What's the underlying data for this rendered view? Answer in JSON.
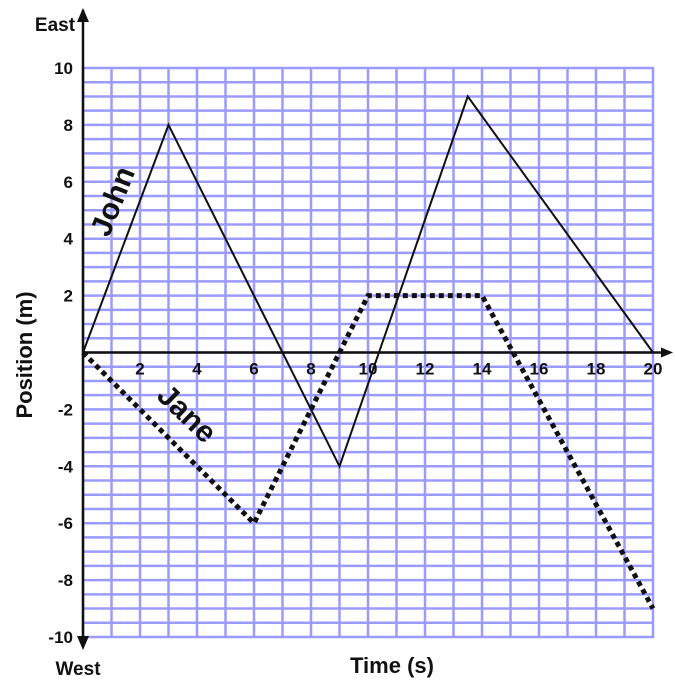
{
  "chart_data": {
    "type": "line",
    "xlabel": "Time (s)",
    "ylabel": "Position (m)",
    "top_label": "East",
    "bottom_label": "West",
    "xlim": [
      0,
      20
    ],
    "ylim": [
      -10,
      10
    ],
    "x_ticks": [
      "2",
      "4",
      "6",
      "8",
      "10",
      "12",
      "14",
      "16",
      "18",
      "20"
    ],
    "y_ticks": [
      "10",
      "8",
      "6",
      "4",
      "2",
      "0",
      "-2",
      "-4",
      "-6",
      "-8",
      "-10"
    ],
    "grid": true,
    "colors": {
      "grid": "#9b9bff",
      "axis": "#111111",
      "line": "#111111"
    },
    "series": [
      {
        "name": "John",
        "style": "solid",
        "x": [
          0,
          3,
          9,
          13.5,
          20
        ],
        "y": [
          0,
          8,
          -4,
          9,
          0
        ]
      },
      {
        "name": "Jane",
        "style": "dotted",
        "x": [
          0,
          6,
          10,
          14,
          20
        ],
        "y": [
          0,
          -6,
          2,
          2,
          -9
        ]
      }
    ]
  }
}
